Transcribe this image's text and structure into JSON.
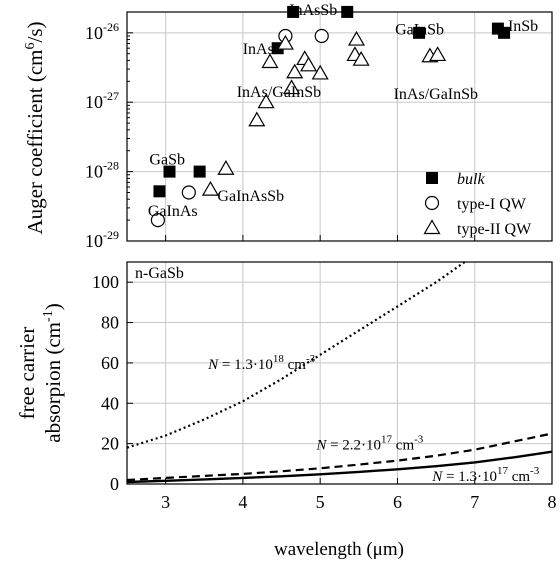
{
  "chart_data": [
    {
      "type": "scatter",
      "ylabel_main": "Auger coefficient (cm",
      "ylabel_sup": "6",
      "ylabel_end": "/s)",
      "xlim": [
        2.5,
        8
      ],
      "ylim_log10": [
        -29,
        -25.7
      ],
      "grid": true,
      "log_scale_y": true,
      "ytick_labels": [
        {
          "exp": -29,
          "base": "10",
          "sup": "-29"
        },
        {
          "exp": -28,
          "base": "10",
          "sup": "-28"
        },
        {
          "exp": -27,
          "base": "10",
          "sup": "-27"
        },
        {
          "exp": -26,
          "base": "10",
          "sup": "-26"
        }
      ],
      "legend": {
        "position": "bottom-right",
        "entries": [
          {
            "label": "bulk",
            "marker": "filled-square",
            "italic": true
          },
          {
            "label": "type-I QW",
            "marker": "open-circle",
            "italic": false
          },
          {
            "label": "type-II QW",
            "marker": "open-triangle",
            "italic": false
          }
        ]
      },
      "series": [
        {
          "name": "bulk",
          "marker": "filled-square",
          "points": [
            {
              "x": 2.92,
              "y": 5.2e-29
            },
            {
              "x": 3.05,
              "y": 1e-28
            },
            {
              "x": 3.44,
              "y": 1e-28
            },
            {
              "x": 4.45,
              "y": 6e-27
            },
            {
              "x": 4.65,
              "y": 2e-26
            },
            {
              "x": 5.35,
              "y": 2e-26
            },
            {
              "x": 6.28,
              "y": 1e-26
            },
            {
              "x": 7.3,
              "y": 1.15e-26
            },
            {
              "x": 7.38,
              "y": 1e-26
            }
          ]
        },
        {
          "name": "type-I QW",
          "marker": "open-circle",
          "points": [
            {
              "x": 2.9,
              "y": 2e-29
            },
            {
              "x": 3.3,
              "y": 5e-29
            },
            {
              "x": 4.55,
              "y": 9e-27
            },
            {
              "x": 5.02,
              "y": 9e-27
            }
          ]
        },
        {
          "name": "type-II QW",
          "marker": "open-triangle",
          "points": [
            {
              "x": 3.58,
              "y": 5.5e-29
            },
            {
              "x": 3.78,
              "y": 1.1e-28
            },
            {
              "x": 4.18,
              "y": 5.5e-28
            },
            {
              "x": 4.3,
              "y": 1e-27
            },
            {
              "x": 4.35,
              "y": 3.8e-27
            },
            {
              "x": 4.55,
              "y": 7e-27
            },
            {
              "x": 4.63,
              "y": 1.6e-27
            },
            {
              "x": 4.67,
              "y": 2.7e-27
            },
            {
              "x": 4.8,
              "y": 4.2e-27
            },
            {
              "x": 4.85,
              "y": 3.4e-27
            },
            {
              "x": 5.0,
              "y": 2.6e-27
            },
            {
              "x": 5.45,
              "y": 4.8e-27
            },
            {
              "x": 5.47,
              "y": 8e-27
            },
            {
              "x": 5.53,
              "y": 4.1e-27
            },
            {
              "x": 6.42,
              "y": 4.6e-27
            },
            {
              "x": 6.52,
              "y": 4.8e-27
            }
          ]
        }
      ],
      "annotations": [
        {
          "text": "InAsSb",
          "x": 4.6,
          "y": 2.2e-26,
          "anchor": "start"
        },
        {
          "text": "GaInSb",
          "x": 5.97,
          "y": 1.15e-26,
          "anchor": "start"
        },
        {
          "text": "InSb",
          "x": 7.43,
          "y": 1.3e-26,
          "anchor": "start"
        },
        {
          "text": "InAs",
          "x": 4.4,
          "y": 6e-27,
          "anchor": "end"
        },
        {
          "text": "InAs/GaInSb",
          "x": 3.92,
          "y": 1.45e-27,
          "anchor": "start"
        },
        {
          "text": "InAs/GaInSb",
          "x": 5.95,
          "y": 1.35e-27,
          "anchor": "start"
        },
        {
          "text": "GaSb",
          "x": 2.79,
          "y": 1.55e-28,
          "anchor": "start"
        },
        {
          "text": "GaInAs",
          "x": 2.77,
          "y": 2.8e-29,
          "anchor": "start"
        },
        {
          "text": "GaInAsSb",
          "x": 3.67,
          "y": 4.6e-29,
          "anchor": "start"
        }
      ]
    },
    {
      "type": "line",
      "xlabel": "wavelength (μm)",
      "ylabel_line1": "free carrier",
      "ylabel_line2_main": "absorpion (cm",
      "ylabel_line2_sup": "-1",
      "ylabel_line2_end": ")",
      "xlim": [
        2.5,
        8
      ],
      "ylim": [
        0,
        110
      ],
      "x_ticks": [
        3,
        4,
        5,
        6,
        7,
        8
      ],
      "y_ticks": [
        0,
        20,
        40,
        60,
        80,
        100
      ],
      "grid": true,
      "panel_label": "n-GaSb",
      "series": [
        {
          "key": "n1.3e18",
          "style": "dotted",
          "label_italic": "N",
          "label_text": " = 1.3·10",
          "label_sup1": "18",
          "label_unit": " cm",
          "label_sup2": "-3",
          "x": [
            2.5,
            3.0,
            3.5,
            4.0,
            4.5,
            5.0,
            5.5,
            6.0,
            6.5,
            6.87
          ],
          "y": [
            18,
            24,
            32,
            41,
            52,
            64,
            76,
            88,
            100,
            110
          ]
        },
        {
          "key": "n2.2e17",
          "style": "dashed",
          "label_italic": "N",
          "label_text": " = 2.2·10",
          "label_sup1": "17",
          "label_unit": " cm",
          "label_sup2": "-3",
          "x": [
            2.5,
            3.0,
            3.5,
            4.0,
            4.5,
            5.0,
            5.5,
            6.0,
            6.5,
            7.0,
            7.5,
            8.0
          ],
          "y": [
            2.0,
            3.0,
            4.0,
            5.0,
            6.3,
            7.8,
            9.6,
            11.6,
            14.0,
            17.0,
            21.0,
            25.0
          ]
        },
        {
          "key": "n1.3e17",
          "style": "solid",
          "label_italic": "N",
          "label_text": " = 1.3·10",
          "label_sup1": "17",
          "label_unit": " cm",
          "label_sup2": "-3",
          "x": [
            2.5,
            3.0,
            3.5,
            4.0,
            4.5,
            5.0,
            5.5,
            6.0,
            6.5,
            7.0,
            7.5,
            8.0
          ],
          "y": [
            1.0,
            1.6,
            2.3,
            3.0,
            3.8,
            4.8,
            6.0,
            7.3,
            8.8,
            10.7,
            13.2,
            16.0
          ]
        }
      ],
      "series_labels": [
        {
          "key": "n1.3e18",
          "x": 3.55,
          "y": 57
        },
        {
          "key": "n2.2e17",
          "x": 4.95,
          "y": 17
        },
        {
          "key": "n1.3e17",
          "x": 6.45,
          "y": 1.5
        }
      ]
    }
  ]
}
